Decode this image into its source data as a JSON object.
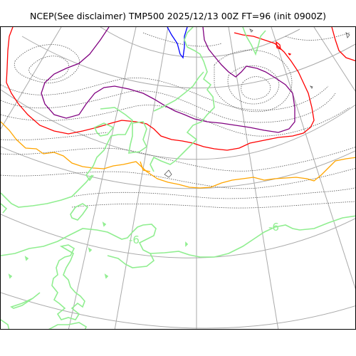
{
  "title": "NCEP(See disclaimer) TMP500 2025/12/13 00Z FT=96 (init 0900Z)",
  "map": {
    "contour_labels": [
      "-6",
      "-6"
    ],
    "colors": {
      "graticule": "#aaaaaa",
      "coast": "#90ee90",
      "isotherm_dotted": "#555555",
      "red_contour": "#ff0000",
      "purple_contour": "#800080",
      "orange_contour": "#ffa500",
      "blue_contour": "#0000ff"
    }
  }
}
